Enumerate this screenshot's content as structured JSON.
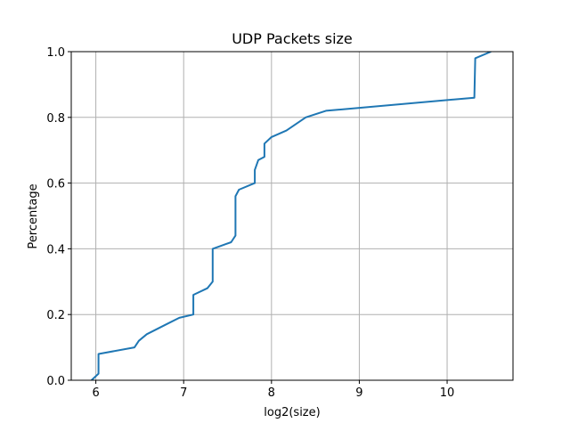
{
  "chart_data": {
    "type": "line",
    "title": "UDP Packets size",
    "xlabel": "log2(size)",
    "ylabel": "Percentage",
    "xlim": [
      5.72,
      10.75
    ],
    "ylim": [
      0.0,
      1.0
    ],
    "grid": true,
    "xticks": [
      {
        "value": 6,
        "label": "6"
      },
      {
        "value": 7,
        "label": "7"
      },
      {
        "value": 8,
        "label": "8"
      },
      {
        "value": 9,
        "label": "9"
      },
      {
        "value": 10,
        "label": "10"
      }
    ],
    "yticks": [
      {
        "value": 0.0,
        "label": "0.0"
      },
      {
        "value": 0.2,
        "label": "0.2"
      },
      {
        "value": 0.4,
        "label": "0.4"
      },
      {
        "value": 0.6,
        "label": "0.6"
      },
      {
        "value": 0.8,
        "label": "0.8"
      },
      {
        "value": 1.0,
        "label": "1.0"
      }
    ],
    "series": [
      {
        "color": "#1f77b4",
        "x": [
          5.95,
          6.03,
          6.03,
          6.44,
          6.49,
          6.58,
          6.8,
          6.95,
          7.11,
          7.11,
          7.27,
          7.33,
          7.33,
          7.54,
          7.59,
          7.59,
          7.63,
          7.81,
          7.81,
          7.85,
          7.92,
          7.92,
          8.0,
          8.17,
          8.39,
          8.62,
          10.31,
          10.32,
          10.5
        ],
        "y": [
          0.0,
          0.02,
          0.08,
          0.1,
          0.12,
          0.14,
          0.17,
          0.19,
          0.2,
          0.26,
          0.28,
          0.3,
          0.4,
          0.42,
          0.44,
          0.56,
          0.58,
          0.6,
          0.64,
          0.67,
          0.68,
          0.72,
          0.74,
          0.76,
          0.8,
          0.82,
          0.86,
          0.98,
          1.0
        ]
      }
    ]
  }
}
